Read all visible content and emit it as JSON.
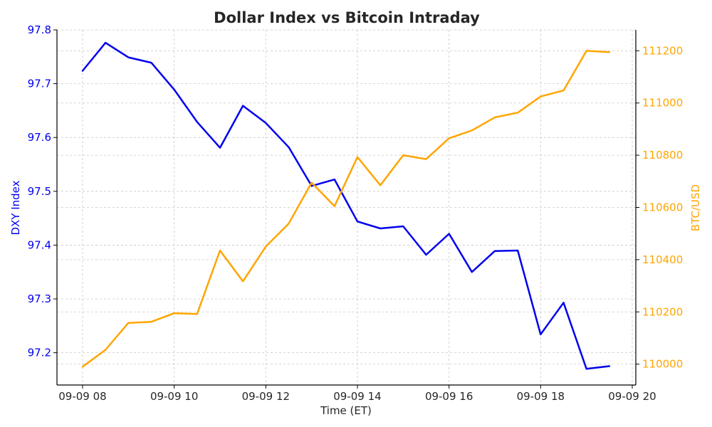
{
  "chart_data": {
    "type": "line",
    "title": "Dollar Index vs Bitcoin Intraday",
    "xlabel": "Time (ET)",
    "x_ticks": [
      "09-09 08",
      "09-09 10",
      "09-09 12",
      "09-09 14",
      "09-09 16",
      "09-09 18",
      "09-09 20"
    ],
    "x_start": "09-09 08:00",
    "x_step_minutes": 30,
    "x": [
      "08:00",
      "08:30",
      "09:00",
      "09:30",
      "10:00",
      "10:30",
      "11:00",
      "11:30",
      "12:00",
      "12:30",
      "13:00",
      "13:30",
      "14:00",
      "14:30",
      "15:00",
      "15:30",
      "16:00",
      "16:30",
      "17:00",
      "17:30",
      "18:00",
      "18:30",
      "19:00",
      "19:30"
    ],
    "grid": true,
    "series": [
      {
        "name": "DXY Index",
        "axis": "left",
        "color": "#0000ee",
        "values": [
          97.724,
          97.776,
          97.749,
          97.739,
          97.689,
          97.629,
          97.581,
          97.659,
          97.627,
          97.582,
          97.51,
          97.522,
          97.444,
          97.431,
          97.435,
          97.382,
          97.421,
          97.35,
          97.389,
          97.39,
          97.234,
          97.293,
          97.17,
          97.175
        ]
      },
      {
        "name": "BTC/USD",
        "axis": "right",
        "color": "#ffa500",
        "values": [
          109990,
          110055,
          110158,
          110162,
          110195,
          110192,
          110435,
          110317,
          110450,
          110538,
          110695,
          110605,
          110793,
          110685,
          110800,
          110785,
          110865,
          110895,
          110945,
          110963,
          111025,
          111048,
          111200,
          111195
        ]
      }
    ],
    "y_left": {
      "label": "DXY Index",
      "ylim": [
        97.14,
        97.8
      ],
      "ticks": [
        "97.2",
        "97.3",
        "97.4",
        "97.5",
        "97.6",
        "97.7",
        "97.8"
      ],
      "color": "#0000ee"
    },
    "y_right": {
      "label": "BTC/USD",
      "ylim": [
        109920,
        111280
      ],
      "ticks": [
        "110000",
        "110200",
        "110400",
        "110600",
        "110800",
        "111000",
        "111200"
      ],
      "color": "#ffa500"
    }
  }
}
